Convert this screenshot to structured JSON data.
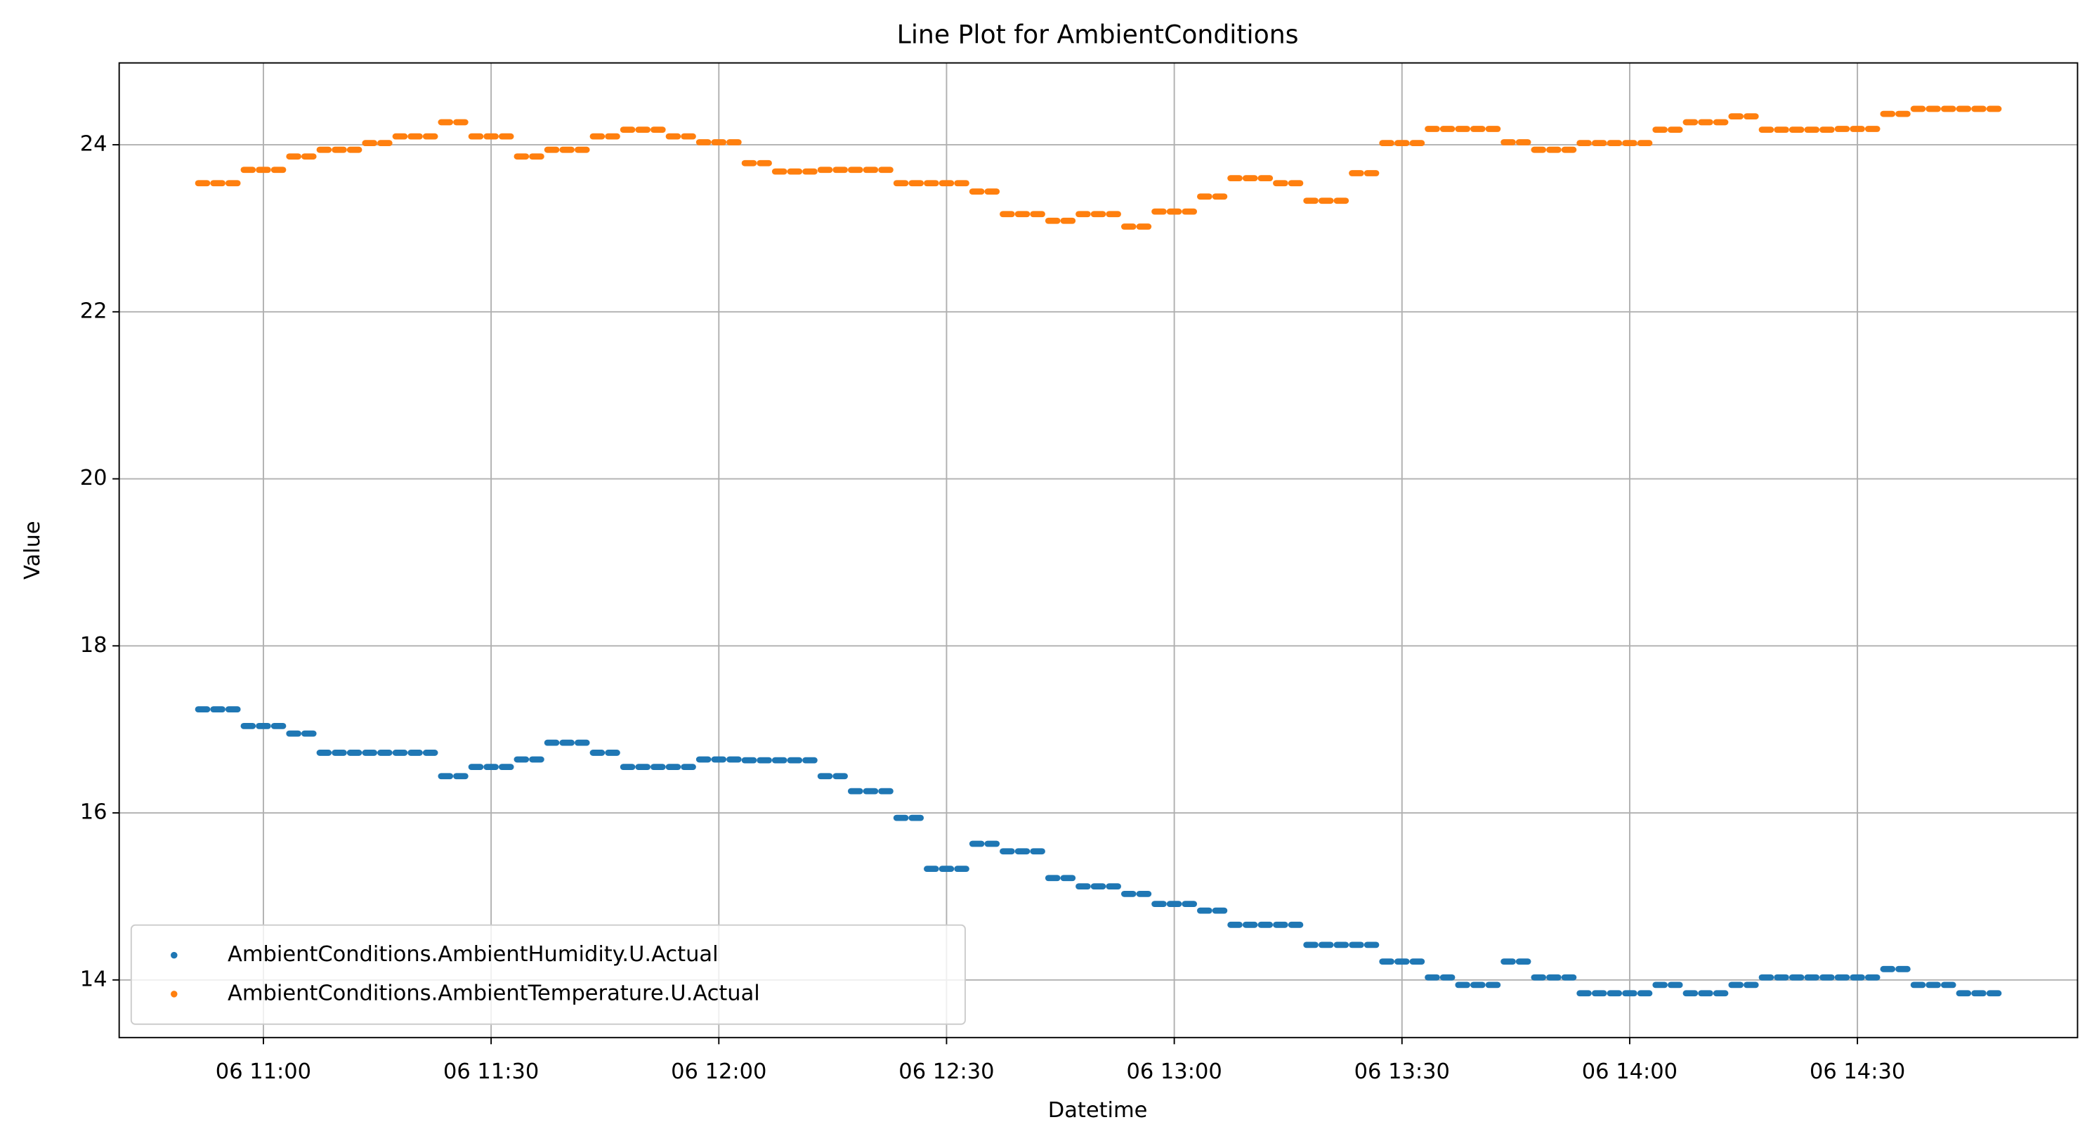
{
  "chart_data": {
    "type": "scatter",
    "title": "Line Plot for AmbientConditions",
    "x_label": "Datetime",
    "y_label": "Value",
    "xlim": [
      "06 10:41",
      "06 14:59"
    ],
    "xticks": [
      "06 11:00",
      "06 11:30",
      "06 12:00",
      "06 12:30",
      "06 13:00",
      "06 13:30",
      "06 14:00",
      "06 14:30"
    ],
    "ylim": [
      13.31,
      24.98
    ],
    "yticks": [
      14,
      16,
      18,
      20,
      22,
      24
    ],
    "grid": true,
    "legend": "lower left",
    "x": [
      "06 10:52",
      "06 10:54",
      "06 10:56",
      "06 10:58",
      "06 11:00",
      "06 11:02",
      "06 11:04",
      "06 11:06",
      "06 11:08",
      "06 11:10",
      "06 11:12",
      "06 11:14",
      "06 11:16",
      "06 11:18",
      "06 11:20",
      "06 11:22",
      "06 11:24",
      "06 11:26",
      "06 11:28",
      "06 11:30",
      "06 11:32",
      "06 11:34",
      "06 11:36",
      "06 11:38",
      "06 11:40",
      "06 11:42",
      "06 11:44",
      "06 11:46",
      "06 11:48",
      "06 11:50",
      "06 11:52",
      "06 11:54",
      "06 11:56",
      "06 11:58",
      "06 12:00",
      "06 12:02",
      "06 12:04",
      "06 12:06",
      "06 12:08",
      "06 12:10",
      "06 12:12",
      "06 12:14",
      "06 12:16",
      "06 12:18",
      "06 12:20",
      "06 12:22",
      "06 12:24",
      "06 12:26",
      "06 12:28",
      "06 12:30",
      "06 12:32",
      "06 12:34",
      "06 12:36",
      "06 12:38",
      "06 12:40",
      "06 12:42",
      "06 12:44",
      "06 12:46",
      "06 12:48",
      "06 12:50",
      "06 12:52",
      "06 12:54",
      "06 12:56",
      "06 12:58",
      "06 13:00",
      "06 13:02",
      "06 13:04",
      "06 13:06",
      "06 13:08",
      "06 13:10",
      "06 13:12",
      "06 13:14",
      "06 13:16",
      "06 13:18",
      "06 13:20",
      "06 13:22",
      "06 13:24",
      "06 13:26",
      "06 13:28",
      "06 13:30",
      "06 13:32",
      "06 13:34",
      "06 13:36",
      "06 13:38",
      "06 13:40",
      "06 13:42",
      "06 13:44",
      "06 13:46",
      "06 13:48",
      "06 13:50",
      "06 13:52",
      "06 13:54",
      "06 13:56",
      "06 13:58",
      "06 14:00",
      "06 14:02",
      "06 14:04",
      "06 14:06",
      "06 14:08",
      "06 14:10",
      "06 14:12",
      "06 14:14",
      "06 14:16",
      "06 14:18",
      "06 14:20",
      "06 14:22",
      "06 14:24",
      "06 14:26",
      "06 14:28",
      "06 14:30",
      "06 14:32",
      "06 14:34",
      "06 14:36",
      "06 14:38",
      "06 14:40",
      "06 14:42",
      "06 14:44",
      "06 14:46",
      "06 14:48"
    ],
    "series": [
      {
        "name": "AmbientConditions.AmbientHumidity.U.Actual",
        "color": "#1f77b4",
        "values": [
          17.24,
          17.24,
          17.24,
          17.04,
          17.04,
          17.04,
          16.95,
          16.95,
          16.72,
          16.72,
          16.72,
          16.72,
          16.72,
          16.72,
          16.72,
          16.72,
          16.44,
          16.44,
          16.55,
          16.55,
          16.55,
          16.64,
          16.64,
          16.84,
          16.84,
          16.84,
          16.72,
          16.72,
          16.55,
          16.55,
          16.55,
          16.55,
          16.55,
          16.64,
          16.64,
          16.64,
          16.63,
          16.63,
          16.63,
          16.63,
          16.63,
          16.44,
          16.44,
          16.26,
          16.26,
          16.26,
          15.94,
          15.94,
          15.33,
          15.33,
          15.33,
          15.63,
          15.63,
          15.54,
          15.54,
          15.54,
          15.22,
          15.22,
          15.12,
          15.12,
          15.12,
          15.03,
          15.03,
          14.91,
          14.91,
          14.91,
          14.83,
          14.83,
          14.66,
          14.66,
          14.66,
          14.66,
          14.66,
          14.42,
          14.42,
          14.42,
          14.42,
          14.42,
          14.22,
          14.22,
          14.22,
          14.03,
          14.03,
          13.94,
          13.94,
          13.94,
          14.22,
          14.22,
          14.03,
          14.03,
          14.03,
          13.84,
          13.84,
          13.84,
          13.84,
          13.84,
          13.94,
          13.94,
          13.84,
          13.84,
          13.84,
          13.94,
          13.94,
          14.03,
          14.03,
          14.03,
          14.03,
          14.03,
          14.03,
          14.03,
          14.03,
          14.13,
          14.13,
          13.94,
          13.94,
          13.94,
          13.84,
          13.84,
          13.84
        ]
      },
      {
        "name": "AmbientConditions.AmbientTemperature.U.Actual",
        "color": "#ff7f0e",
        "values": [
          23.54,
          23.54,
          23.54,
          23.7,
          23.7,
          23.7,
          23.86,
          23.86,
          23.94,
          23.94,
          23.94,
          24.02,
          24.02,
          24.1,
          24.1,
          24.1,
          24.27,
          24.27,
          24.1,
          24.1,
          24.1,
          23.86,
          23.86,
          23.94,
          23.94,
          23.94,
          24.1,
          24.1,
          24.18,
          24.18,
          24.18,
          24.1,
          24.1,
          24.03,
          24.03,
          24.03,
          23.78,
          23.78,
          23.68,
          23.68,
          23.68,
          23.7,
          23.7,
          23.7,
          23.7,
          23.7,
          23.54,
          23.54,
          23.54,
          23.54,
          23.54,
          23.44,
          23.44,
          23.17,
          23.17,
          23.17,
          23.09,
          23.09,
          23.17,
          23.17,
          23.17,
          23.02,
          23.02,
          23.2,
          23.2,
          23.2,
          23.38,
          23.38,
          23.6,
          23.6,
          23.6,
          23.54,
          23.54,
          23.33,
          23.33,
          23.33,
          23.66,
          23.66,
          24.02,
          24.02,
          24.02,
          24.19,
          24.19,
          24.19,
          24.19,
          24.19,
          24.03,
          24.03,
          23.94,
          23.94,
          23.94,
          24.02,
          24.02,
          24.02,
          24.02,
          24.02,
          24.18,
          24.18,
          24.27,
          24.27,
          24.27,
          24.34,
          24.34,
          24.18,
          24.18,
          24.18,
          24.18,
          24.18,
          24.19,
          24.19,
          24.19,
          24.37,
          24.37,
          24.43,
          24.43,
          24.43,
          24.43,
          24.43,
          24.43
        ]
      }
    ]
  }
}
